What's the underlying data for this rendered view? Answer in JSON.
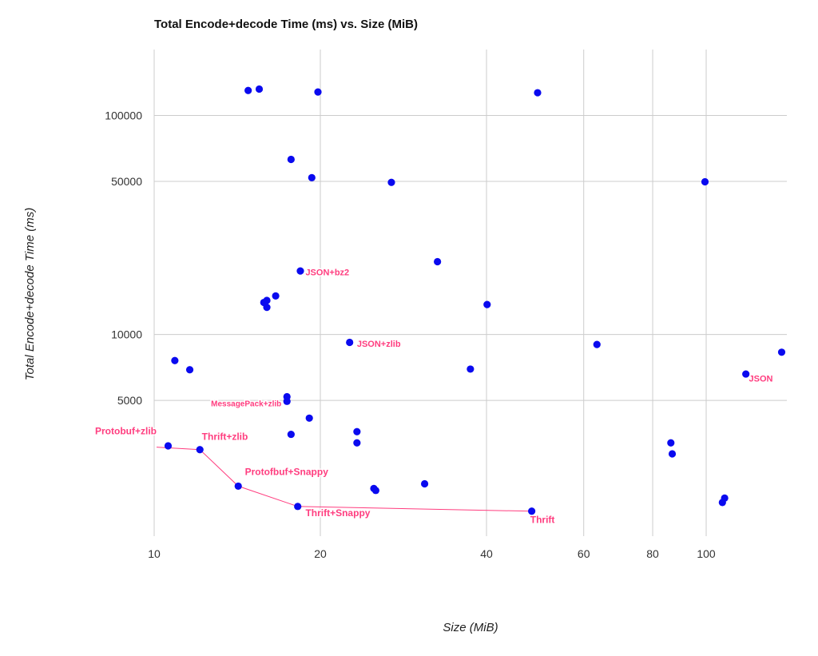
{
  "chart_data": {
    "type": "scatter",
    "title": "Total Encode+decode Time (ms) vs. Size (MiB)",
    "xlabel": "Size (MiB)",
    "ylabel": "Total Encode+decode Time (ms)",
    "x_scale": "log",
    "y_scale": "log",
    "xlim": [
      10,
      140
    ],
    "ylim": [
      1200,
      200000
    ],
    "grid": true,
    "point_color": "#0a0aef",
    "annotation_color": "#ff3d7f",
    "x_ticks": [
      10,
      20,
      40,
      60,
      80,
      100
    ],
    "x_tick_labels": [
      "10",
      "20",
      "40",
      "60",
      "80",
      "100"
    ],
    "y_ticks": [
      5000,
      10000,
      50000,
      100000
    ],
    "y_tick_labels": [
      "5000",
      "10000",
      "50000",
      "100000"
    ],
    "x_gridlines": [
      10,
      20,
      40,
      60,
      80,
      100
    ],
    "y_gridlines": [
      5000,
      10000,
      50000,
      100000
    ],
    "points": [
      {
        "x": 14.8,
        "y": 130000
      },
      {
        "x": 15.5,
        "y": 132000
      },
      {
        "x": 19.8,
        "y": 128000
      },
      {
        "x": 49.5,
        "y": 127000
      },
      {
        "x": 17.7,
        "y": 63000
      },
      {
        "x": 19.3,
        "y": 52000
      },
      {
        "x": 26.9,
        "y": 49500
      },
      {
        "x": 99.5,
        "y": 49800
      },
      {
        "x": 32.6,
        "y": 21500
      },
      {
        "x": 18.4,
        "y": 19500
      },
      {
        "x": 16.6,
        "y": 15000
      },
      {
        "x": 15.8,
        "y": 14000
      },
      {
        "x": 16.0,
        "y": 14300
      },
      {
        "x": 16.0,
        "y": 13300
      },
      {
        "x": 40.1,
        "y": 13700
      },
      {
        "x": 22.6,
        "y": 9200
      },
      {
        "x": 63.4,
        "y": 9000
      },
      {
        "x": 137.0,
        "y": 8300
      },
      {
        "x": 10.9,
        "y": 7600
      },
      {
        "x": 11.6,
        "y": 6900
      },
      {
        "x": 37.4,
        "y": 6950
      },
      {
        "x": 118.0,
        "y": 6600
      },
      {
        "x": 17.4,
        "y": 5200
      },
      {
        "x": 17.4,
        "y": 4950
      },
      {
        "x": 19.1,
        "y": 4150
      },
      {
        "x": 23.3,
        "y": 3600
      },
      {
        "x": 23.3,
        "y": 3200
      },
      {
        "x": 17.7,
        "y": 3500
      },
      {
        "x": 86.3,
        "y": 3200
      },
      {
        "x": 86.8,
        "y": 2850
      },
      {
        "x": 10.6,
        "y": 3100
      },
      {
        "x": 12.1,
        "y": 2980
      },
      {
        "x": 14.2,
        "y": 2030
      },
      {
        "x": 18.2,
        "y": 1640
      },
      {
        "x": 48.3,
        "y": 1560
      },
      {
        "x": 25.0,
        "y": 1980
      },
      {
        "x": 25.2,
        "y": 1940
      },
      {
        "x": 30.9,
        "y": 2080
      },
      {
        "x": 107.0,
        "y": 1710
      },
      {
        "x": 108.0,
        "y": 1790
      }
    ],
    "annotations": [
      {
        "text": "JSON+bz2",
        "x": 18.8,
        "y": 18600,
        "size": 11,
        "align": "start"
      },
      {
        "text": "JSON+zlib",
        "x": 23.3,
        "y": 8800,
        "size": 11,
        "align": "start"
      },
      {
        "text": "MessagePack+zlib",
        "x": 17.0,
        "y": 4700,
        "size": 10,
        "align": "end"
      },
      {
        "text": "Protobuf+zlib",
        "x": 10.1,
        "y": 3500,
        "size": 12,
        "align": "end"
      },
      {
        "text": "Thrift+zlib",
        "x": 12.2,
        "y": 3300,
        "size": 12,
        "align": "start"
      },
      {
        "text": "Protofbuf+Snappy",
        "x": 14.6,
        "y": 2280,
        "size": 12,
        "align": "start"
      },
      {
        "text": "Thrift+Snappy",
        "x": 18.8,
        "y": 1480,
        "size": 12,
        "align": "start"
      },
      {
        "text": "Thrift",
        "x": 48.0,
        "y": 1380,
        "size": 12,
        "align": "start"
      },
      {
        "text": "JSON",
        "x": 119.5,
        "y": 6100,
        "size": 11,
        "align": "start"
      }
    ],
    "frontier_line": [
      {
        "x": 10.1,
        "y": 3060
      },
      {
        "x": 12.1,
        "y": 2980
      },
      {
        "x": 14.2,
        "y": 2030
      },
      {
        "x": 18.2,
        "y": 1640
      },
      {
        "x": 48.3,
        "y": 1560
      }
    ]
  }
}
